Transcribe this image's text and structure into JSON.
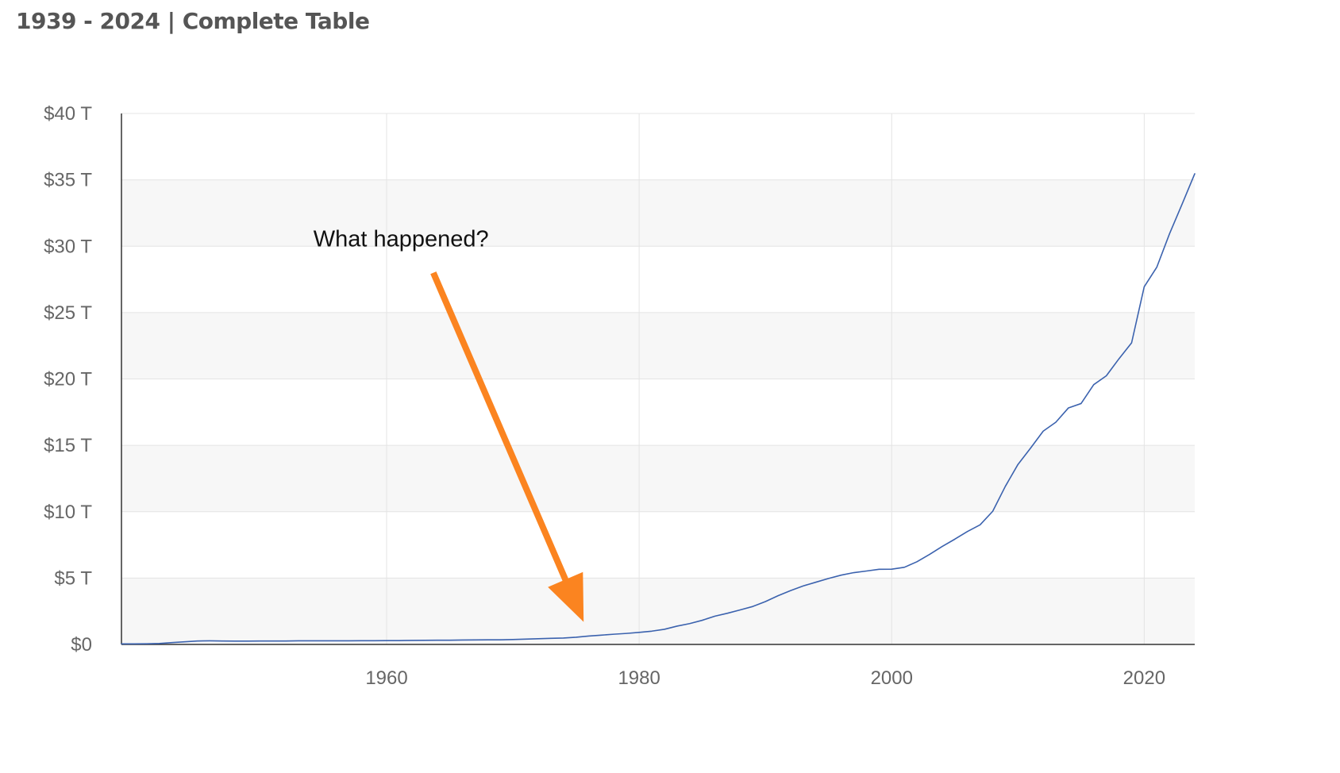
{
  "header": {
    "title": "1939 - 2024 | Complete Table"
  },
  "colors": {
    "line": "#3b62ae",
    "annotation_arrow": "#fb8420",
    "band": "#f7f7f7",
    "grid": "#e4e4e4",
    "axis": "#333333"
  },
  "chart_data": {
    "type": "line",
    "title": "",
    "xlabel": "",
    "ylabel": "",
    "x_unit": "year",
    "y_unit": "trillion USD",
    "xlim": [
      1939,
      2024
    ],
    "ylim": [
      0,
      40
    ],
    "x_ticks": [
      1960,
      1980,
      2000,
      2020
    ],
    "x_tick_labels": [
      "1960",
      "1980",
      "2000",
      "2020"
    ],
    "y_ticks": [
      0,
      5,
      10,
      15,
      20,
      25,
      30,
      35,
      40
    ],
    "y_tick_labels": [
      "$0",
      "$5 T",
      "$10 T",
      "$15 T",
      "$20 T",
      "$25 T",
      "$30 T",
      "$35 T",
      "$40 T"
    ],
    "grid": true,
    "alternating_bands": true,
    "legend": "none",
    "series": [
      {
        "points": [
          [
            1939,
            0.04
          ],
          [
            1940,
            0.04
          ],
          [
            1941,
            0.05
          ],
          [
            1942,
            0.07
          ],
          [
            1943,
            0.14
          ],
          [
            1944,
            0.2
          ],
          [
            1945,
            0.26
          ],
          [
            1946,
            0.27
          ],
          [
            1947,
            0.26
          ],
          [
            1948,
            0.25
          ],
          [
            1949,
            0.25
          ],
          [
            1950,
            0.26
          ],
          [
            1951,
            0.26
          ],
          [
            1952,
            0.26
          ],
          [
            1953,
            0.27
          ],
          [
            1954,
            0.27
          ],
          [
            1955,
            0.27
          ],
          [
            1956,
            0.27
          ],
          [
            1957,
            0.27
          ],
          [
            1958,
            0.28
          ],
          [
            1959,
            0.28
          ],
          [
            1960,
            0.29
          ],
          [
            1961,
            0.29
          ],
          [
            1962,
            0.3
          ],
          [
            1963,
            0.31
          ],
          [
            1964,
            0.32
          ],
          [
            1965,
            0.32
          ],
          [
            1966,
            0.33
          ],
          [
            1967,
            0.34
          ],
          [
            1968,
            0.35
          ],
          [
            1969,
            0.35
          ],
          [
            1970,
            0.37
          ],
          [
            1971,
            0.4
          ],
          [
            1972,
            0.43
          ],
          [
            1973,
            0.46
          ],
          [
            1974,
            0.48
          ],
          [
            1975,
            0.54
          ],
          [
            1976,
            0.63
          ],
          [
            1977,
            0.7
          ],
          [
            1978,
            0.77
          ],
          [
            1979,
            0.83
          ],
          [
            1980,
            0.91
          ],
          [
            1981,
            1.0
          ],
          [
            1982,
            1.14
          ],
          [
            1983,
            1.38
          ],
          [
            1984,
            1.57
          ],
          [
            1985,
            1.82
          ],
          [
            1986,
            2.13
          ],
          [
            1987,
            2.35
          ],
          [
            1988,
            2.6
          ],
          [
            1989,
            2.86
          ],
          [
            1990,
            3.23
          ],
          [
            1991,
            3.67
          ],
          [
            1992,
            4.06
          ],
          [
            1993,
            4.41
          ],
          [
            1994,
            4.69
          ],
          [
            1995,
            4.97
          ],
          [
            1996,
            5.22
          ],
          [
            1997,
            5.41
          ],
          [
            1998,
            5.53
          ],
          [
            1999,
            5.66
          ],
          [
            2000,
            5.67
          ],
          [
            2001,
            5.81
          ],
          [
            2002,
            6.23
          ],
          [
            2003,
            6.78
          ],
          [
            2004,
            7.38
          ],
          [
            2005,
            7.93
          ],
          [
            2006,
            8.51
          ],
          [
            2007,
            9.01
          ],
          [
            2008,
            10.03
          ],
          [
            2009,
            11.91
          ],
          [
            2010,
            13.56
          ],
          [
            2011,
            14.79
          ],
          [
            2012,
            16.07
          ],
          [
            2013,
            16.74
          ],
          [
            2014,
            17.82
          ],
          [
            2015,
            18.15
          ],
          [
            2016,
            19.57
          ],
          [
            2017,
            20.24
          ],
          [
            2018,
            21.52
          ],
          [
            2019,
            22.72
          ],
          [
            2020,
            26.95
          ],
          [
            2021,
            28.43
          ],
          [
            2022,
            30.93
          ],
          [
            2023,
            33.17
          ],
          [
            2024,
            35.46
          ]
        ]
      }
    ],
    "annotations": [
      {
        "text": "What happened?",
        "text_at": [
          1954.2,
          30.0
        ],
        "arrow_from": [
          1963.7,
          28.0
        ],
        "arrow_to": [
          1975.6,
          1.7
        ]
      }
    ]
  }
}
